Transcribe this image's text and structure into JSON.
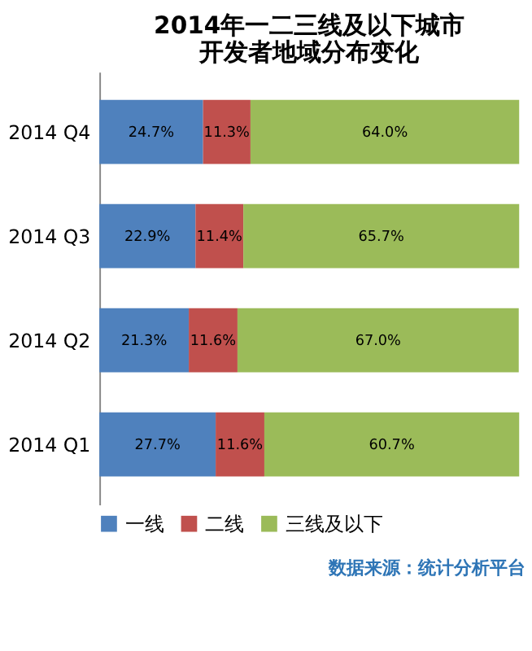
{
  "chart_data": {
    "type": "bar",
    "orientation": "horizontal",
    "stacked": true,
    "title": "2014年一二三线及以下城市开发者地域分布变化",
    "categories": [
      "2014 Q4",
      "2014 Q3",
      "2014 Q2",
      "2014 Q1"
    ],
    "series": [
      {
        "name": "一线",
        "color": "#4f81bd",
        "values": [
          24.7,
          22.9,
          21.3,
          27.7
        ],
        "value_labels": [
          "24.7%",
          "22.9%",
          "21.3%",
          "27.7%"
        ]
      },
      {
        "name": "二线",
        "color": "#c0504d",
        "values": [
          11.3,
          11.4,
          11.6,
          11.6
        ],
        "value_labels": [
          "11.3%",
          "11.4%",
          "11.6%",
          "11.6%"
        ]
      },
      {
        "name": "三线及以下",
        "color": "#9bbb59",
        "values": [
          64.0,
          65.7,
          67.0,
          60.7
        ],
        "value_labels": [
          "64.0%",
          "65.7%",
          "67.0%",
          "60.7%"
        ]
      }
    ],
    "legend": "bottom",
    "annotations": [
      "数据来源：统计分析平台"
    ]
  }
}
